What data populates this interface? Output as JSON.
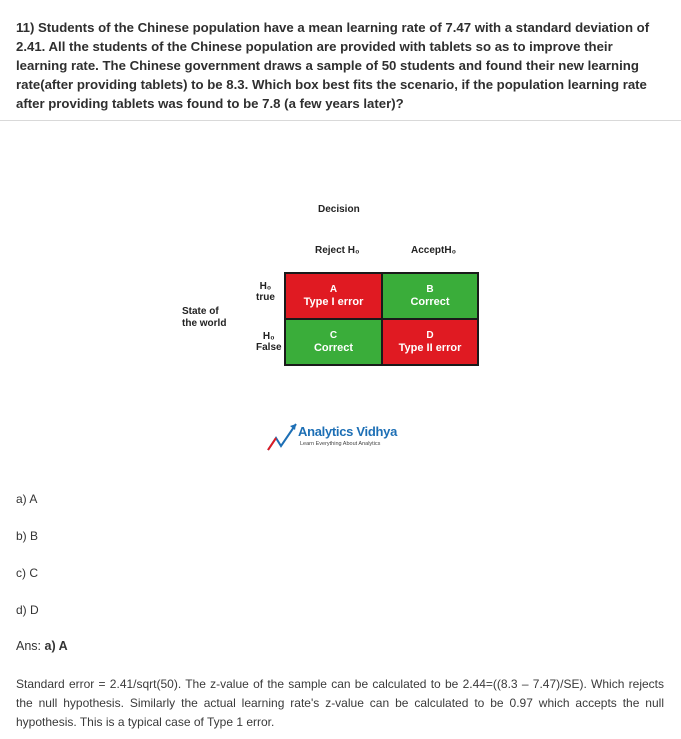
{
  "question": "11) Students of the Chinese population have a mean learning rate of 7.47 with a standard deviation of 2.41. All the students of the Chinese population are provided with tablets so as to improve their learning rate. The Chinese government draws a sample of 50 students and found their new learning rate(after providing tablets) to be 8.3. Which box best fits the scenario, if the population learning rate after providing tablets was found to be 7.8 (a few years later)?",
  "figure": {
    "decision": "Decision",
    "reject": "Reject H₀",
    "accept": "AcceptH₀",
    "state_line1": "State of",
    "state_line2": "the world",
    "h0_true_top": "H₀",
    "h0_true_bottom": "true",
    "h0_false_top": "H₀",
    "h0_false_bottom": "False",
    "cells": [
      {
        "letter": "A",
        "label": "Type I error",
        "color": "#e01a22"
      },
      {
        "letter": "B",
        "label": "Correct",
        "color": "#3aad3a"
      },
      {
        "letter": "C",
        "label": "Correct",
        "color": "#3aad3a"
      },
      {
        "letter": "D",
        "label": "Type II error",
        "color": "#e01a22"
      }
    ],
    "logo_name": "Analytics Vidhya",
    "logo_tagline": "Learn Everything About Analytics"
  },
  "options": [
    "a) A",
    "b) B",
    "c) C",
    "d) D"
  ],
  "answer_prefix": "Ans: ",
  "answer_value": "a) A",
  "explanation": "Standard error = 2.41/sqrt(50). The z-value of the sample can be calculated to be 2.44=((8.3 – 7.47)/SE). Which rejects the null hypothesis. Similarly the actual learning rate's z-value can be calculated to be 0.97 which accepts the null hypothesis. This is a typical case of Type 1 error."
}
